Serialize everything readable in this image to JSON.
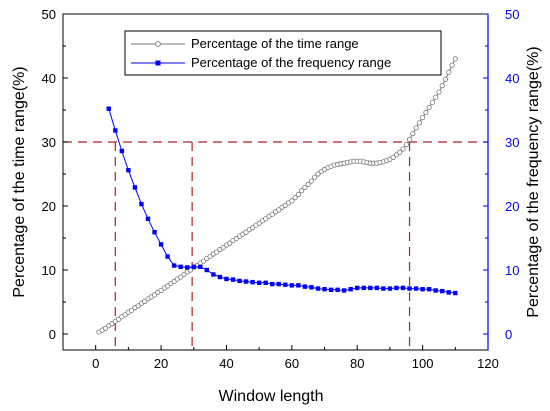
{
  "chart_data": {
    "type": "line",
    "xlabel": "Window length",
    "ylabel_left": "Percentage of the time range(%)",
    "ylabel_right": "Percentage of the frequency range(%)",
    "xlim": [
      -10,
      120
    ],
    "xticks": [
      0,
      20,
      40,
      60,
      80,
      100,
      120
    ],
    "ylim": [
      -2.5,
      50
    ],
    "yticks": [
      0,
      10,
      20,
      30,
      40,
      50
    ],
    "yticks_right": [
      0,
      10,
      20,
      30,
      40,
      50
    ],
    "grid": false,
    "legend_position": "top-center",
    "colors": {
      "left_axis": "#000000",
      "right_axis": "#0000ff",
      "time_series": "#777777",
      "freq_series": "#0000ff",
      "reference_lines": "#b22222"
    },
    "series": [
      {
        "name": "Percentage of the time range",
        "marker": "open-circle",
        "axis": "left",
        "x": [
          1,
          2,
          3,
          4,
          5,
          6,
          7,
          8,
          9,
          10,
          11,
          12,
          13,
          14,
          15,
          16,
          17,
          18,
          19,
          20,
          21,
          22,
          23,
          24,
          25,
          26,
          27,
          28,
          29,
          30,
          31,
          32,
          33,
          34,
          35,
          36,
          37,
          38,
          39,
          40,
          41,
          42,
          43,
          44,
          45,
          46,
          47,
          48,
          49,
          50,
          51,
          52,
          53,
          54,
          55,
          56,
          57,
          58,
          59,
          60,
          61,
          62,
          63,
          64,
          65,
          66,
          67,
          68,
          69,
          70,
          71,
          72,
          73,
          74,
          75,
          76,
          77,
          78,
          79,
          80,
          81,
          82,
          83,
          84,
          85,
          86,
          87,
          88,
          89,
          90,
          91,
          92,
          93,
          94,
          95,
          96,
          97,
          98,
          99,
          100,
          101,
          102,
          103,
          104,
          105,
          106,
          107,
          108,
          109,
          110
        ],
        "values": [
          0.3,
          0.6,
          0.9,
          1.3,
          1.6,
          2.0,
          2.3,
          2.7,
          3.0,
          3.4,
          3.7,
          4.1,
          4.4,
          4.8,
          5.1,
          5.5,
          5.8,
          6.1,
          6.5,
          6.8,
          7.2,
          7.5,
          7.9,
          8.2,
          8.6,
          8.9,
          9.3,
          9.7,
          10.0,
          10.4,
          10.7,
          11.1,
          11.4,
          11.8,
          12.1,
          12.5,
          12.8,
          13.2,
          13.5,
          13.9,
          14.2,
          14.6,
          14.9,
          15.3,
          15.6,
          15.9,
          16.3,
          16.6,
          17.0,
          17.3,
          17.7,
          18.0,
          18.4,
          18.7,
          19.1,
          19.4,
          19.8,
          20.1,
          20.5,
          20.8,
          21.3,
          21.8,
          22.4,
          22.9,
          23.4,
          23.9,
          24.5,
          25.0,
          25.4,
          25.7,
          26.0,
          26.2,
          26.4,
          26.5,
          26.6,
          26.7,
          26.8,
          26.9,
          27.0,
          27.0,
          27.0,
          26.9,
          26.8,
          26.7,
          26.7,
          26.7,
          26.8,
          26.9,
          27.1,
          27.3,
          27.6,
          28.0,
          28.4,
          28.9,
          29.6,
          30.4,
          31.3,
          32.2,
          33.0,
          33.8,
          34.6,
          35.4,
          36.2,
          37.0,
          37.8,
          38.8,
          39.8,
          40.9,
          42.0,
          43.0
        ]
      },
      {
        "name": "Percentage of the frequency range",
        "marker": "filled-square",
        "axis": "right",
        "x": [
          4,
          6,
          8,
          10,
          12,
          14,
          16,
          18,
          20,
          22,
          24,
          26,
          28,
          30,
          32,
          34,
          36,
          38,
          40,
          42,
          44,
          46,
          48,
          50,
          52,
          54,
          56,
          58,
          60,
          62,
          64,
          66,
          68,
          70,
          72,
          74,
          76,
          78,
          80,
          82,
          84,
          86,
          88,
          90,
          92,
          94,
          96,
          98,
          100,
          102,
          104,
          106,
          108,
          110
        ],
        "values": [
          35.2,
          31.8,
          28.6,
          25.6,
          22.9,
          20.3,
          18.0,
          15.9,
          14.0,
          12.1,
          10.7,
          10.5,
          10.4,
          10.5,
          10.5,
          10.0,
          9.3,
          8.9,
          8.6,
          8.5,
          8.3,
          8.2,
          8.1,
          8.0,
          8.0,
          7.8,
          7.8,
          7.7,
          7.6,
          7.6,
          7.4,
          7.3,
          7.1,
          7.0,
          6.9,
          6.9,
          6.8,
          7.0,
          7.2,
          7.2,
          7.2,
          7.2,
          7.1,
          7.1,
          7.2,
          7.2,
          7.1,
          7.1,
          7.0,
          7.0,
          6.8,
          6.7,
          6.5,
          6.4
        ]
      }
    ],
    "reference_lines": {
      "horizontal_y": 30,
      "vertical_x": [
        6,
        29.5,
        96
      ]
    }
  }
}
